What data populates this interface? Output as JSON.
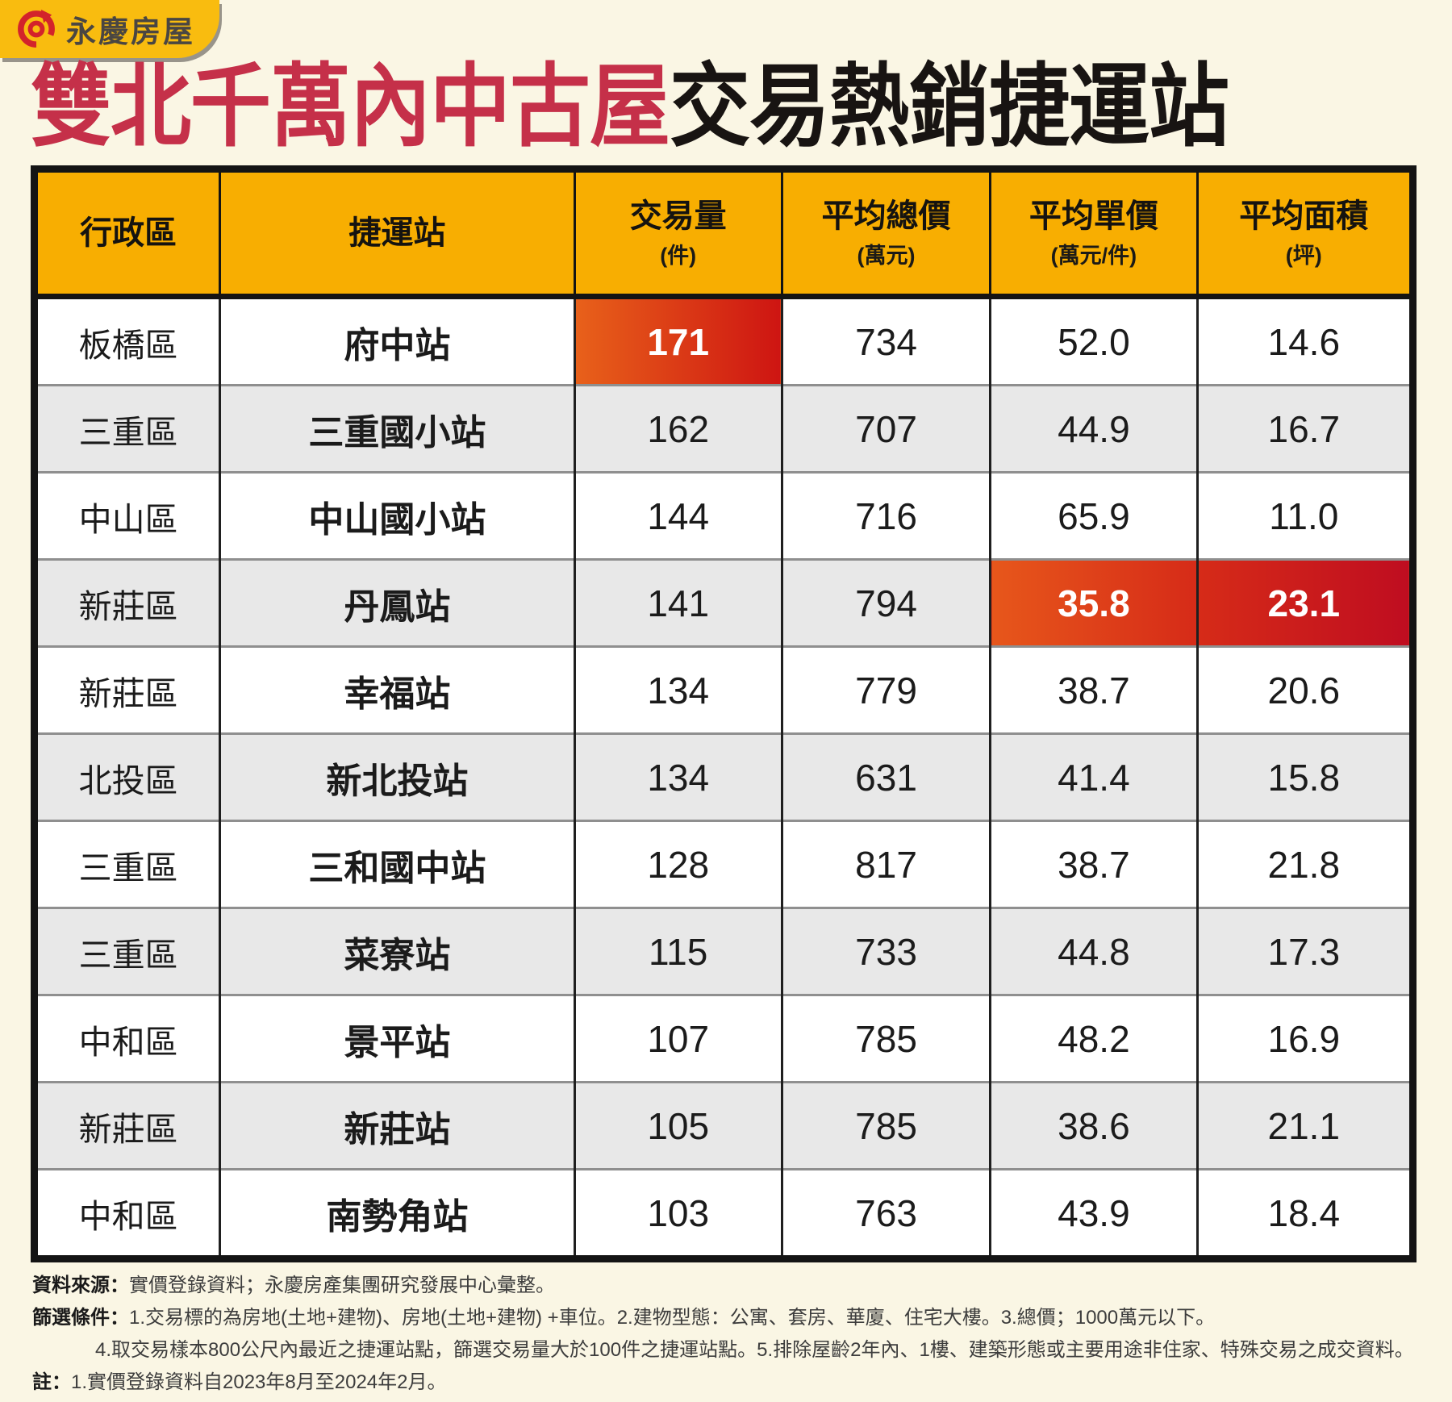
{
  "colors": {
    "background": "#FAF6E4",
    "title_red": "#C53049",
    "title_black": "#181412",
    "header_yellow": "#F8AE01",
    "stripe_gray": "#E8E8E8",
    "logo_badge_yellow": "#F9BC0F",
    "logo_red": "#D3232B",
    "highlight_gradient_start": "#E8611A",
    "highlight_gradient_end": "#BF0D20",
    "table_border": "#141414"
  },
  "logo": {
    "brand": "永慶房屋"
  },
  "title": {
    "highlight": "雙北千萬內中古屋",
    "rest": "交易熱銷捷運站"
  },
  "table": {
    "columns": [
      {
        "key": "district",
        "label": "行政區",
        "unit": ""
      },
      {
        "key": "station",
        "label": "捷運站",
        "unit": ""
      },
      {
        "key": "volume",
        "label": "交易量",
        "unit": "(件)"
      },
      {
        "key": "avg_total",
        "label": "平均總價",
        "unit": "(萬元)"
      },
      {
        "key": "avg_unit",
        "label": "平均單價",
        "unit": "(萬元/件)"
      },
      {
        "key": "avg_area",
        "label": "平均面積",
        "unit": "(坪)"
      }
    ],
    "rows": [
      {
        "district": "板橋區",
        "station": "府中站",
        "volume": "171",
        "avg_total": "734",
        "avg_unit": "52.0",
        "avg_area": "14.6",
        "highlight": {
          "volume": [
            "#E8611A",
            "#CE1512"
          ]
        }
      },
      {
        "district": "三重區",
        "station": "三重國小站",
        "volume": "162",
        "avg_total": "707",
        "avg_unit": "44.9",
        "avg_area": "16.7"
      },
      {
        "district": "中山區",
        "station": "中山國小站",
        "volume": "144",
        "avg_total": "716",
        "avg_unit": "65.9",
        "avg_area": "11.0"
      },
      {
        "district": "新莊區",
        "station": "丹鳳站",
        "volume": "141",
        "avg_total": "794",
        "avg_unit": "35.8",
        "avg_area": "23.1",
        "highlight": {
          "avg_unit": [
            "#E7571B",
            "#D62B18"
          ],
          "avg_area": [
            "#D62B18",
            "#BF0D20"
          ]
        }
      },
      {
        "district": "新莊區",
        "station": "幸福站",
        "volume": "134",
        "avg_total": "779",
        "avg_unit": "38.7",
        "avg_area": "20.6"
      },
      {
        "district": "北投區",
        "station": "新北投站",
        "volume": "134",
        "avg_total": "631",
        "avg_unit": "41.4",
        "avg_area": "15.8"
      },
      {
        "district": "三重區",
        "station": "三和國中站",
        "volume": "128",
        "avg_total": "817",
        "avg_unit": "38.7",
        "avg_area": "21.8"
      },
      {
        "district": "三重區",
        "station": "菜寮站",
        "volume": "115",
        "avg_total": "733",
        "avg_unit": "44.8",
        "avg_area": "17.3"
      },
      {
        "district": "中和區",
        "station": "景平站",
        "volume": "107",
        "avg_total": "785",
        "avg_unit": "48.2",
        "avg_area": "16.9"
      },
      {
        "district": "新莊區",
        "station": "新莊站",
        "volume": "105",
        "avg_total": "785",
        "avg_unit": "38.6",
        "avg_area": "21.1"
      },
      {
        "district": "中和區",
        "station": "南勢角站",
        "volume": "103",
        "avg_total": "763",
        "avg_unit": "43.9",
        "avg_area": "18.4"
      }
    ]
  },
  "chart_data": {
    "type": "table",
    "title": "雙北千萬內中古屋交易熱銷捷運站",
    "columns": [
      "行政區",
      "捷運站",
      "交易量(件)",
      "平均總價(萬元)",
      "平均單價(萬元/件)",
      "平均面積(坪)"
    ],
    "rows": [
      [
        "板橋區",
        "府中站",
        171,
        734,
        52.0,
        14.6
      ],
      [
        "三重區",
        "三重國小站",
        162,
        707,
        44.9,
        16.7
      ],
      [
        "中山區",
        "中山國小站",
        144,
        716,
        65.9,
        11.0
      ],
      [
        "新莊區",
        "丹鳳站",
        141,
        794,
        35.8,
        23.1
      ],
      [
        "新莊區",
        "幸福站",
        134,
        779,
        38.7,
        20.6
      ],
      [
        "北投區",
        "新北投站",
        134,
        631,
        41.4,
        15.8
      ],
      [
        "三重區",
        "三和國中站",
        128,
        817,
        38.7,
        21.8
      ],
      [
        "三重區",
        "菜寮站",
        115,
        733,
        44.8,
        17.3
      ],
      [
        "中和區",
        "景平站",
        107,
        785,
        48.2,
        16.9
      ],
      [
        "新莊區",
        "新莊站",
        105,
        785,
        38.6,
        21.1
      ],
      [
        "中和區",
        "南勢角站",
        103,
        763,
        43.9,
        18.4
      ]
    ],
    "highlighted_cells": [
      {
        "station": "府中站",
        "column": "交易量(件)",
        "value": 171
      },
      {
        "station": "丹鳳站",
        "column": "平均單價(萬元/件)",
        "value": 35.8
      },
      {
        "station": "丹鳳站",
        "column": "平均面積(坪)",
        "value": 23.1
      }
    ],
    "legend_position": "none",
    "grid": true
  },
  "footer": {
    "source_label": "資料來源：",
    "source_text": "實價登錄資料；永慶房產集團研究發展中心彙整。",
    "filter_label": "篩選條件：",
    "filter_text": "1.交易標的為房地(土地+建物)、房地(土地+建物) +車位。2.建物型態：公寓、套房、華廈、住宅大樓。3.總價；1000萬元以下。",
    "filter_text2": "4.取交易樣本800公尺內最近之捷運站點，篩選交易量大於100件之捷運站點。5.排除屋齡2年內、1樓、建築形態或主要用途非住家、特殊交易之成交資料。",
    "note_label": "註：",
    "note_text": "1.實價登錄資料自2023年8月至2024年2月。"
  }
}
